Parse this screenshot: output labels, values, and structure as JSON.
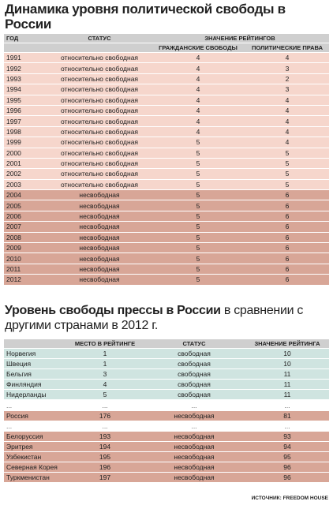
{
  "freedom": {
    "title": "Динамика уровня политической свободы в России",
    "headers": {
      "year": "ГОД",
      "status": "СТАТУС",
      "ratings": "ЗНАЧЕНИЕ РЕЙТИНГОВ",
      "civil": "ГРАЖДАНСКИЕ СВОБОДЫ",
      "political": "ПОЛИТИЧЕСКИЕ ПРАВА"
    },
    "rows": [
      [
        "1991",
        "относительно свободная",
        "4",
        "4"
      ],
      [
        "1992",
        "относительно свободная",
        "4",
        "3"
      ],
      [
        "1993",
        "относительно свободная",
        "4",
        "2"
      ],
      [
        "1994",
        "относительно свободная",
        "4",
        "3"
      ],
      [
        "1995",
        "относительно свободная",
        "4",
        "4"
      ],
      [
        "1996",
        "относительно свободная",
        "4",
        "4"
      ],
      [
        "1997",
        "относительно свободная",
        "4",
        "4"
      ],
      [
        "1998",
        "относительно свободная",
        "4",
        "4"
      ],
      [
        "1999",
        "относительно свободная",
        "5",
        "4"
      ],
      [
        "2000",
        "относительно свободная",
        "5",
        "5"
      ],
      [
        "2001",
        "относительно свободная",
        "5",
        "5"
      ],
      [
        "2002",
        "относительно свободная",
        "5",
        "5"
      ],
      [
        "2003",
        "относительно свободная",
        "5",
        "5"
      ],
      [
        "2004",
        "несвободная",
        "5",
        "6"
      ],
      [
        "2005",
        "несвободная",
        "5",
        "6"
      ],
      [
        "2006",
        "несвободная",
        "5",
        "6"
      ],
      [
        "2007",
        "несвободная",
        "5",
        "6"
      ],
      [
        "2008",
        "несвободная",
        "5",
        "6"
      ],
      [
        "2009",
        "несвободная",
        "5",
        "6"
      ],
      [
        "2010",
        "несвободная",
        "5",
        "6"
      ],
      [
        "2011",
        "несвободная",
        "5",
        "6"
      ],
      [
        "2012",
        "несвободная",
        "5",
        "6"
      ]
    ]
  },
  "press": {
    "title_bold": "Уровень свободы прессы в России",
    "title_rest": "в сравнении с другими странами в 2012 г.",
    "headers": {
      "place": "МЕСТО В РЕЙТИНГЕ",
      "status": "СТАТУС",
      "value": "ЗНАЧЕНИЕ РЕЙТИНГА"
    },
    "rows": [
      [
        "Норвегия",
        "1",
        "свободная",
        "10"
      ],
      [
        "Швеция",
        "1",
        "свободная",
        "10"
      ],
      [
        "Бельгия",
        "3",
        "свободная",
        "11"
      ],
      [
        "Финляндия",
        "4",
        "свободная",
        "11"
      ],
      [
        "Нидерланды",
        "5",
        "свободная",
        "11"
      ],
      [
        "...",
        "...",
        "...",
        "..."
      ],
      [
        "Россия",
        "176",
        "несвободная",
        "81"
      ],
      [
        "...",
        "...",
        "...",
        "..."
      ],
      [
        "Белоруссия",
        "193",
        "несвободная",
        "93"
      ],
      [
        "Эритрея",
        "194",
        "несвободная",
        "94"
      ],
      [
        "Узбекистан",
        "195",
        "несвободная",
        "95"
      ],
      [
        "Северная Корея",
        "196",
        "несвободная",
        "96"
      ],
      [
        "Туркменистан",
        "197",
        "несвободная",
        "96"
      ]
    ]
  },
  "source": "ИСТОЧНИК: FREEDOM HOUSE"
}
